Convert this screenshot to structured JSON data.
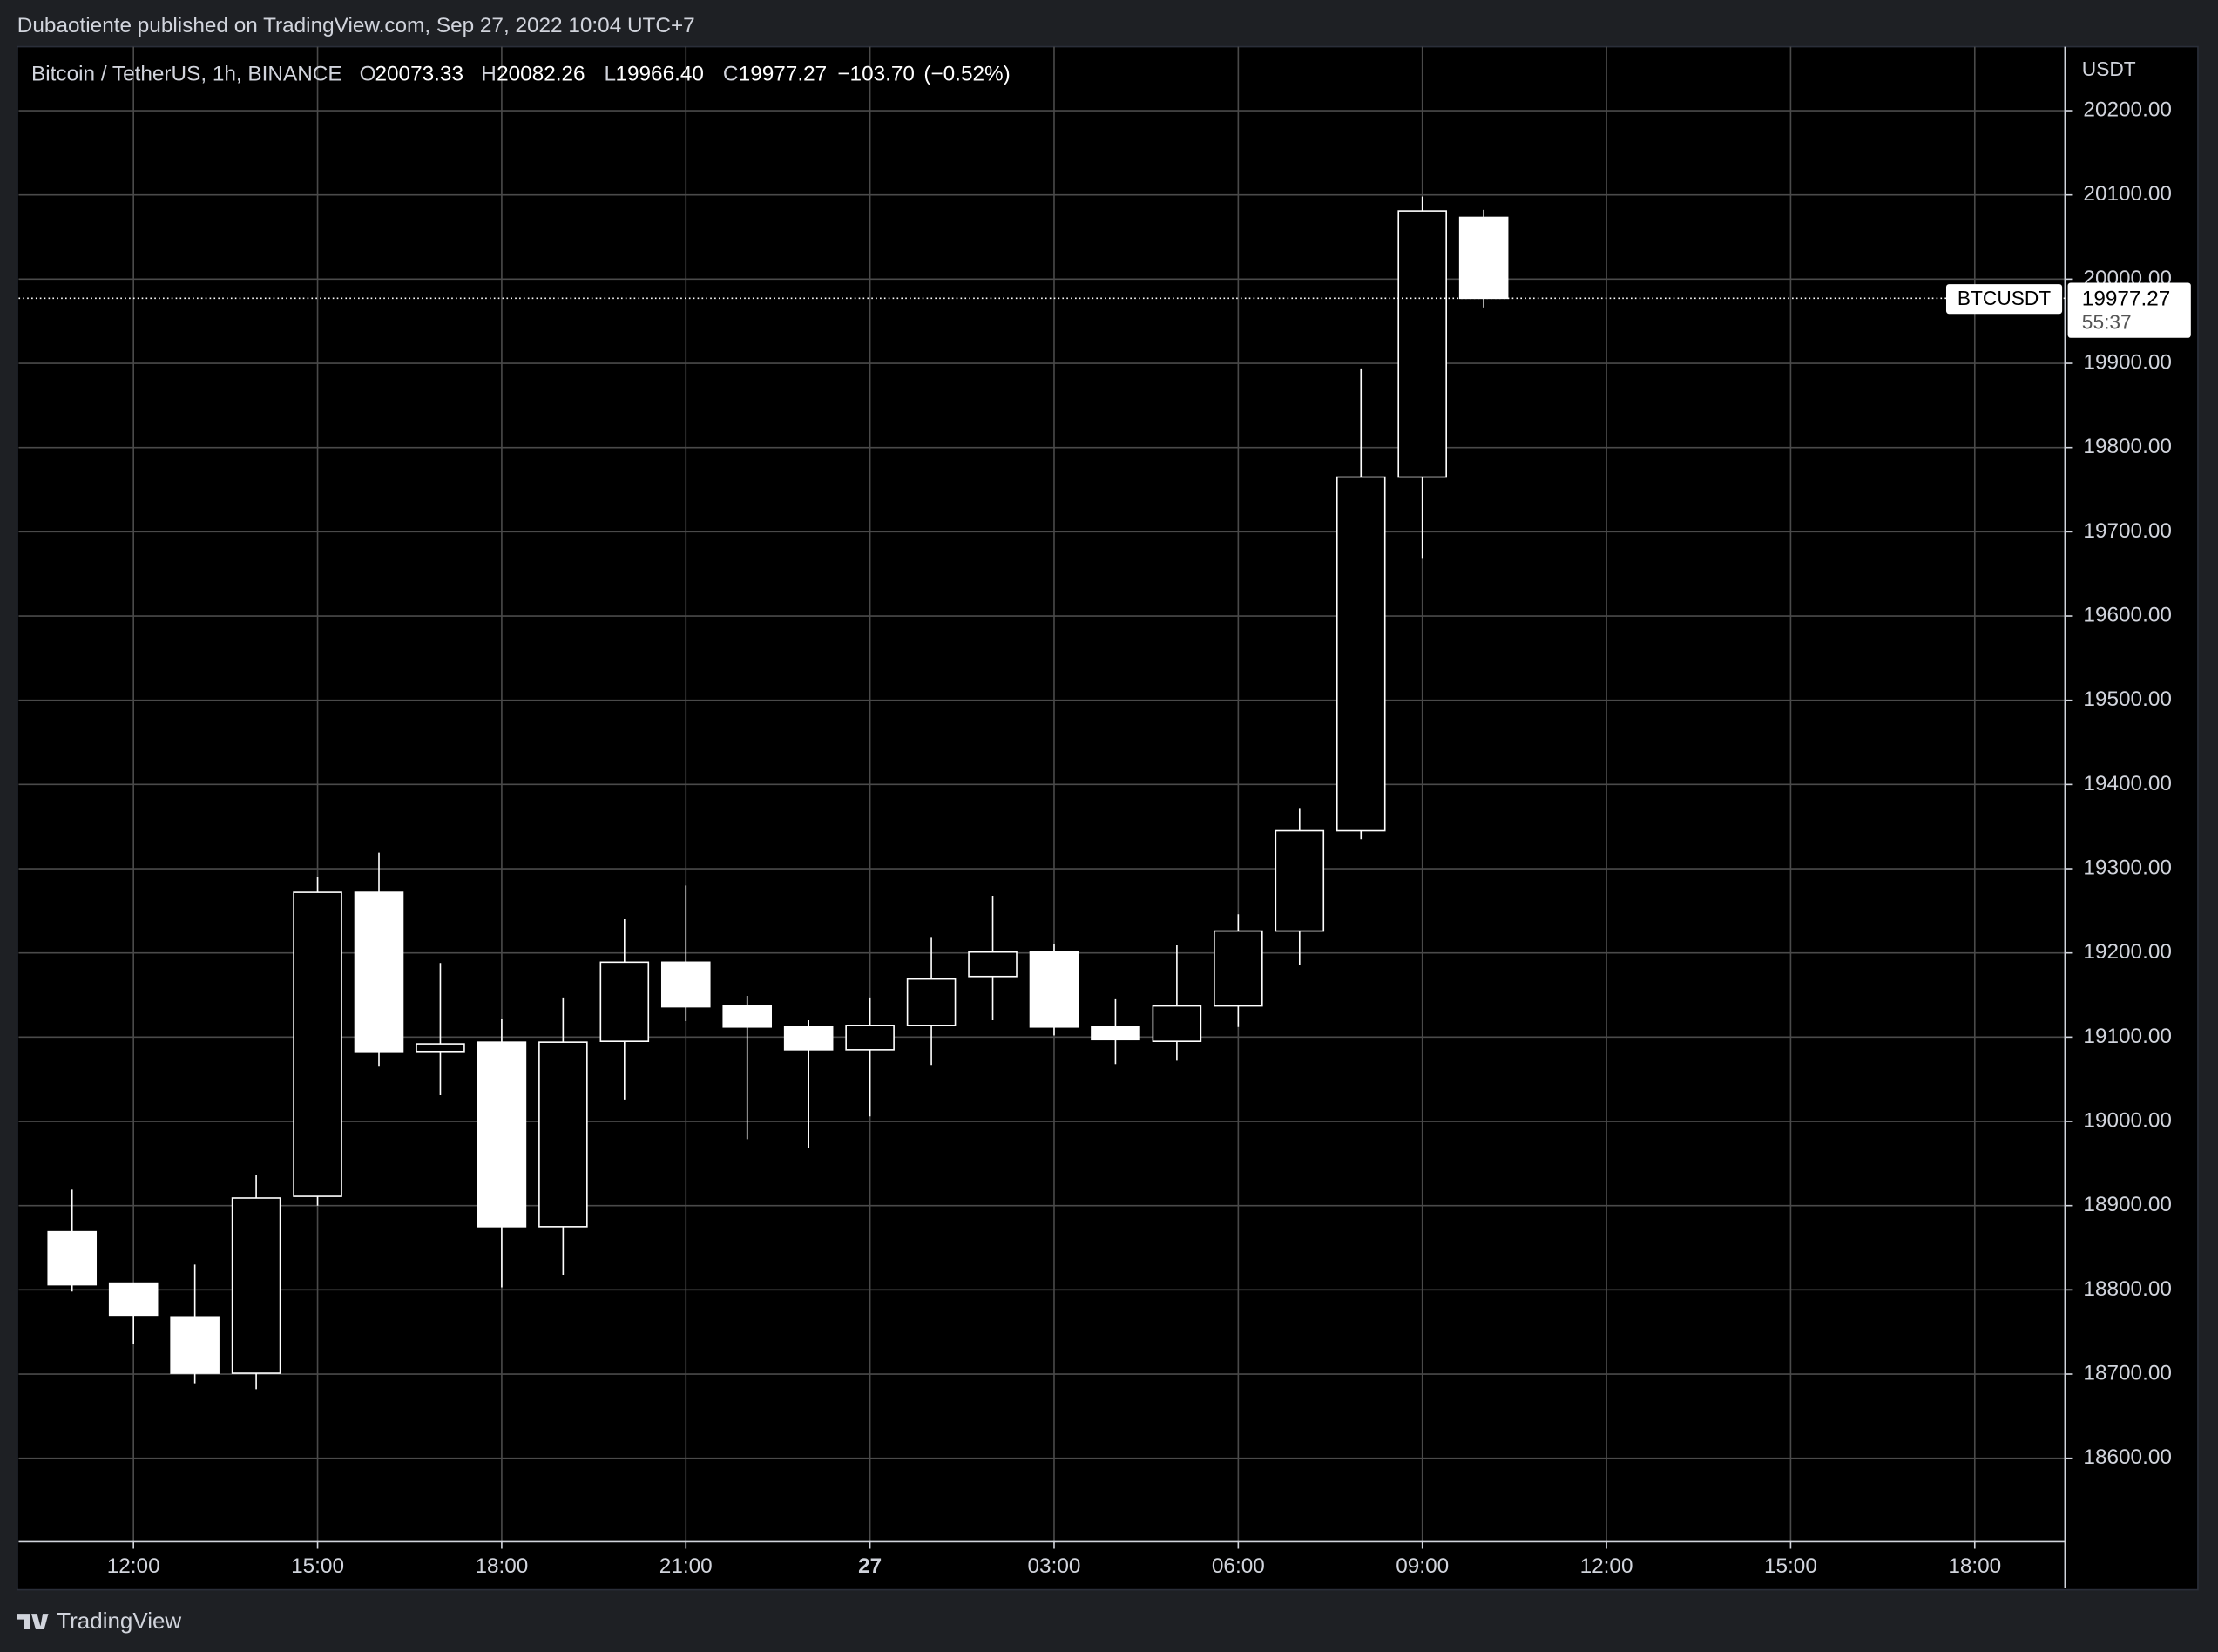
{
  "header": {
    "published": "Dubaotiente published on TradingView.com, Sep 27, 2022 10:04 UTC+7"
  },
  "footer": {
    "brand": "TradingView"
  },
  "chart_data": {
    "type": "candlestick",
    "legend": {
      "symbol": "Bitcoin / TetherUS, 1h, BINANCE",
      "items": [
        {
          "name": "O",
          "value": 20073.33,
          "label": "20073.33"
        },
        {
          "name": "H",
          "value": 20082.26,
          "label": "20082.26"
        },
        {
          "name": "L",
          "value": 19966.4,
          "label": "19966.40"
        },
        {
          "name": "C",
          "value": 19977.27,
          "label": "19977.27"
        }
      ],
      "change": {
        "value": -103.7,
        "label": "−103.70"
      },
      "change_pct": {
        "value": -0.52,
        "label": "(−0.52%)"
      }
    },
    "currency": "USDT",
    "price_tag": {
      "symbol": "BTCUSDT",
      "value": 19977.27,
      "label": "19977.27",
      "countdown": "55:37"
    },
    "x": [
      11,
      12,
      13,
      14,
      15,
      16,
      17,
      18,
      19,
      20,
      21,
      22,
      23,
      24,
      25,
      26,
      27,
      28,
      29,
      30,
      31,
      32,
      33,
      34
    ],
    "open": [
      18869,
      18808,
      18768,
      18701,
      18911,
      19272,
      19083,
      19094,
      18875,
      19095,
      19189,
      19137,
      19112,
      19085,
      19114,
      19172,
      19201,
      19112,
      19095,
      19137,
      19226,
      19345,
      19765,
      20073.33
    ],
    "high": [
      18919,
      18808,
      18830,
      18936,
      19290,
      19319,
      19188,
      19122,
      19147,
      19240,
      19280,
      19149,
      19120,
      19147,
      19219,
      19268,
      19211,
      19146,
      19209,
      19246,
      19372,
      19894,
      20098,
      20082.26
    ],
    "low": [
      18798,
      18736,
      18689,
      18682,
      18900,
      19065,
      19031,
      18803,
      18818,
      19026,
      19119,
      18979,
      18968,
      19006,
      19067,
      19120,
      19102,
      19068,
      19072,
      19112,
      19186,
      19335,
      19669,
      19966.4
    ],
    "close": [
      18806,
      18770,
      18701,
      18909,
      19272,
      19083,
      19092,
      18875,
      19094,
      19189,
      19136,
      19112,
      19085,
      19114,
      19169,
      19201,
      19112,
      19097,
      19137,
      19226,
      19345,
      19765,
      20080.97,
      19977.27
    ],
    "up_color": "#000000",
    "down_color": "#ffffff",
    "border_color": "#ffffff",
    "grid": true,
    "xlim": [
      10.13,
      43.47
    ],
    "xticks": [
      {
        "value": 12,
        "label": "12:00"
      },
      {
        "value": 15,
        "label": "15:00"
      },
      {
        "value": 18,
        "label": "18:00"
      },
      {
        "value": 21,
        "label": "21:00"
      },
      {
        "value": 24,
        "label": "27"
      },
      {
        "value": 27,
        "label": "03:00"
      },
      {
        "value": 30,
        "label": "06:00"
      },
      {
        "value": 33,
        "label": "09:00"
      },
      {
        "value": 36,
        "label": "12:00"
      },
      {
        "value": 39,
        "label": "15:00"
      },
      {
        "value": 42,
        "label": "18:00"
      }
    ],
    "ylim": [
      18501,
      20276
    ],
    "yticks": [
      {
        "value": 18600,
        "label": "18600.00"
      },
      {
        "value": 18700,
        "label": "18700.00"
      },
      {
        "value": 18800,
        "label": "18800.00"
      },
      {
        "value": 18900,
        "label": "18900.00"
      },
      {
        "value": 19000,
        "label": "19000.00"
      },
      {
        "value": 19100,
        "label": "19100.00"
      },
      {
        "value": 19200,
        "label": "19200.00"
      },
      {
        "value": 19300,
        "label": "19300.00"
      },
      {
        "value": 19400,
        "label": "19400.00"
      },
      {
        "value": 19500,
        "label": "19500.00"
      },
      {
        "value": 19600,
        "label": "19600.00"
      },
      {
        "value": 19700,
        "label": "19700.00"
      },
      {
        "value": 19800,
        "label": "19800.00"
      },
      {
        "value": 19900,
        "label": "19900.00"
      },
      {
        "value": 20000,
        "label": "20000.00"
      },
      {
        "value": 20100,
        "label": "20100.00"
      },
      {
        "value": 20200,
        "label": "20200.00"
      }
    ]
  }
}
